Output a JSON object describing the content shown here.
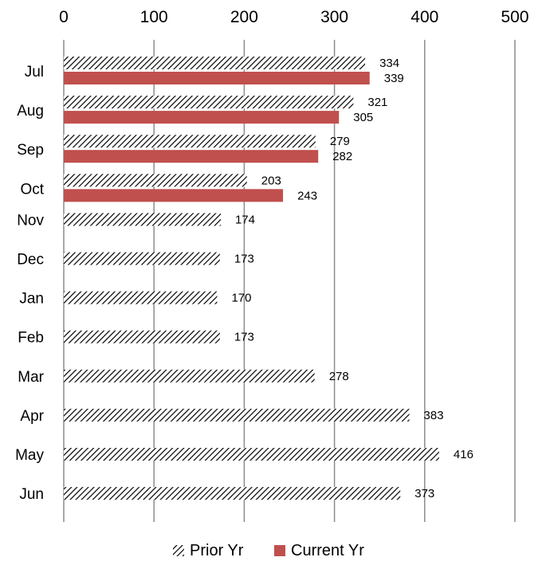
{
  "chart_data": {
    "type": "bar",
    "orientation": "horizontal",
    "title": "",
    "xlabel": "",
    "ylabel": "",
    "xlim": [
      0,
      500
    ],
    "x_ticks": [
      0,
      100,
      200,
      300,
      400,
      500
    ],
    "x_axis_position": "top",
    "grid": true,
    "legend_position": "bottom",
    "categories": [
      "Jul",
      "Aug",
      "Sep",
      "Oct",
      "Nov",
      "Dec",
      "Jan",
      "Feb",
      "Mar",
      "Apr",
      "May",
      "Jun"
    ],
    "series": [
      {
        "name": "Prior Yr",
        "style": "diagonal-hatch",
        "color": "#000000",
        "values": [
          334,
          321,
          279,
          203,
          174,
          173,
          170,
          173,
          278,
          383,
          416,
          373
        ]
      },
      {
        "name": "Current Yr",
        "style": "solid",
        "color": "#C0504D",
        "values": [
          339,
          305,
          282,
          243,
          null,
          null,
          null,
          null,
          null,
          null,
          null,
          null
        ]
      }
    ]
  }
}
